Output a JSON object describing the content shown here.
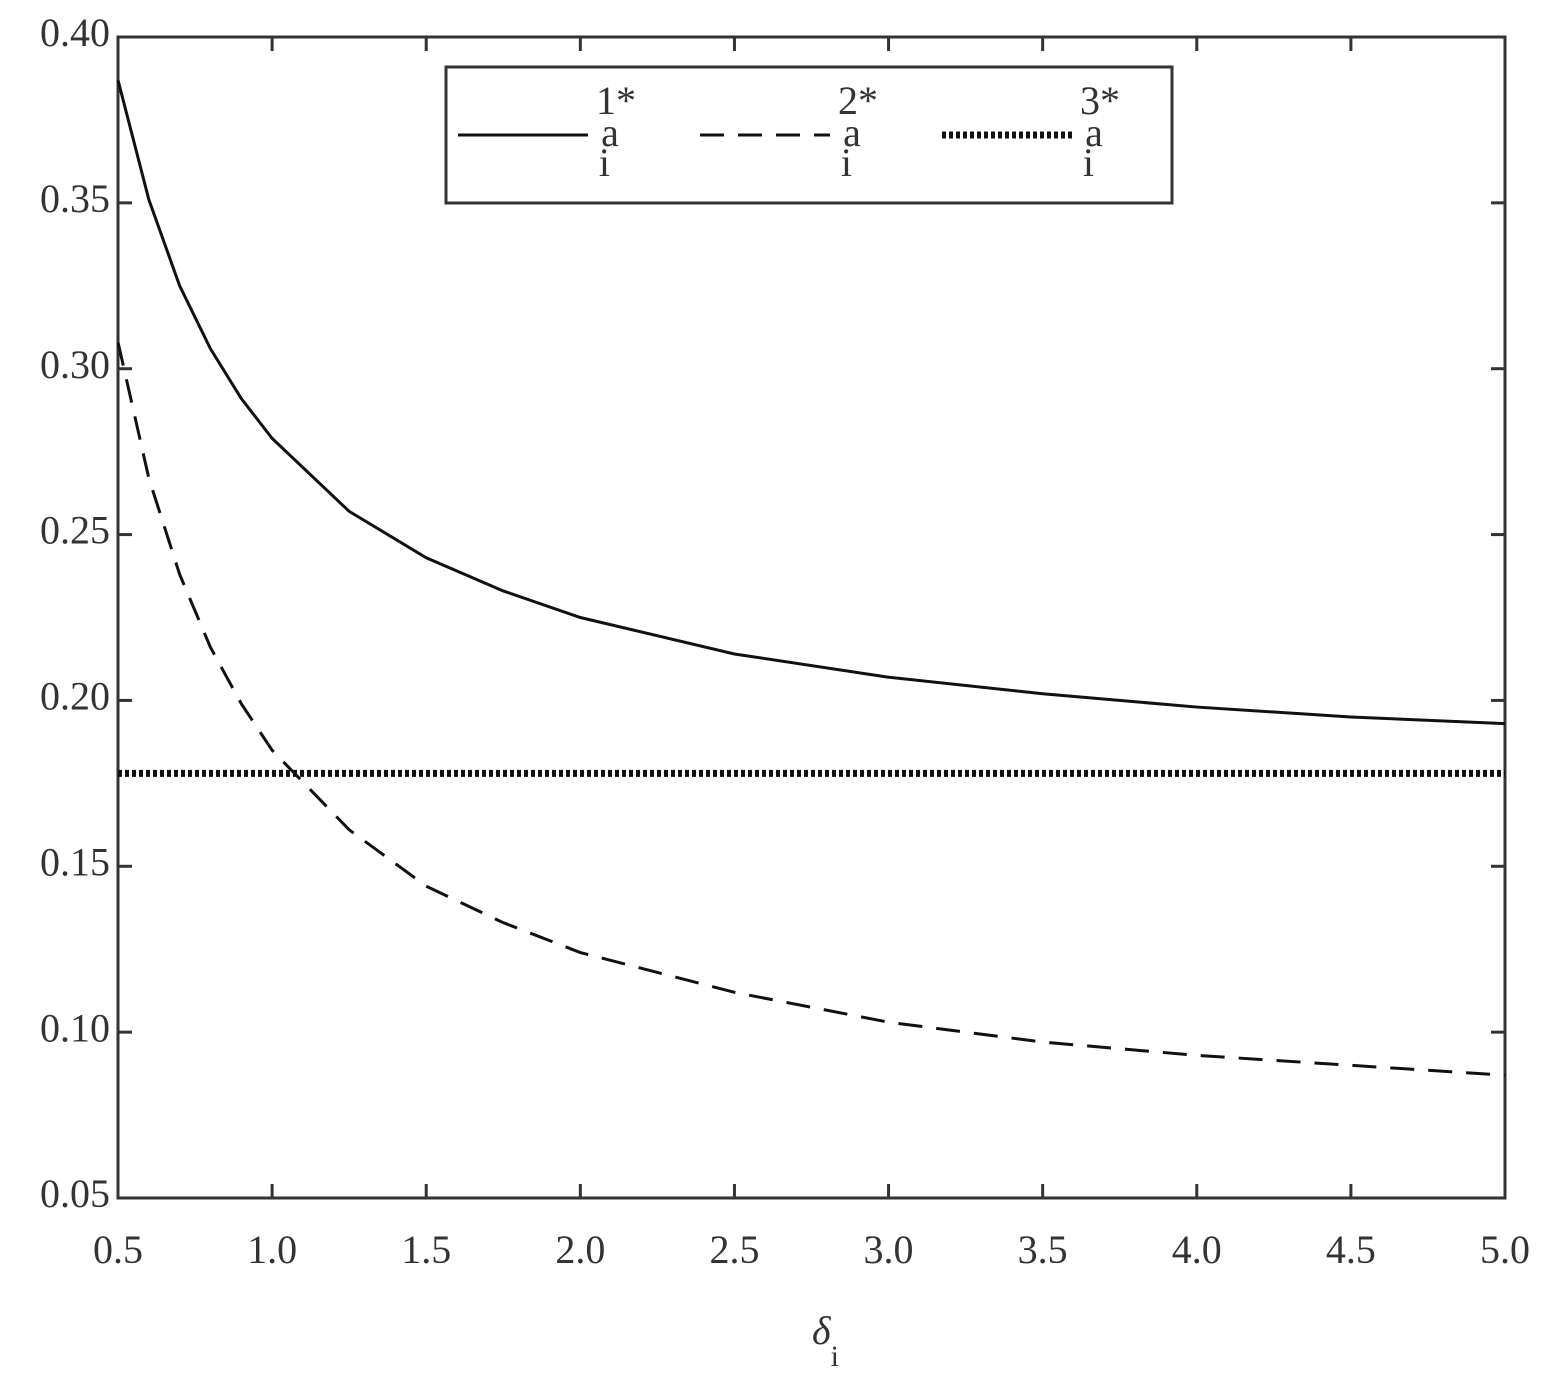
{
  "chart_data": {
    "type": "line",
    "xlabel": "δ",
    "xlabel_sub": "i",
    "x": [
      0.5,
      0.6,
      0.7,
      0.8,
      0.9,
      1.0,
      1.25,
      1.5,
      1.75,
      2.0,
      2.5,
      3.0,
      3.5,
      4.0,
      4.5,
      5.0
    ],
    "series": [
      {
        "name": "a",
        "name_sub": "i",
        "name_sup": "1*",
        "color": "#111111",
        "linestyle": "solid",
        "values": [
          0.387,
          0.351,
          0.325,
          0.306,
          0.291,
          0.279,
          0.257,
          0.243,
          0.233,
          0.225,
          0.214,
          0.207,
          0.202,
          0.198,
          0.195,
          0.193
        ]
      },
      {
        "name": "a",
        "name_sub": "i",
        "name_sup": "2*",
        "color": "#111111",
        "linestyle": "dashed",
        "values": [
          0.308,
          0.267,
          0.238,
          0.216,
          0.199,
          0.185,
          0.161,
          0.144,
          0.133,
          0.124,
          0.112,
          0.103,
          0.097,
          0.093,
          0.09,
          0.087
        ]
      },
      {
        "name": "a",
        "name_sub": "i",
        "name_sup": "3*",
        "color": "#111111",
        "linestyle": "dotted",
        "values": [
          0.178,
          0.178,
          0.178,
          0.178,
          0.178,
          0.178,
          0.178,
          0.178,
          0.178,
          0.178,
          0.178,
          0.178,
          0.178,
          0.178,
          0.178,
          0.178
        ]
      }
    ],
    "xlim": [
      0.5,
      5.0
    ],
    "xticks": [
      0.5,
      {
        "value": 1.0,
        "label": "1.0"
      },
      1.5,
      {
        "value": 2.0,
        "label": "2.0"
      },
      2.5,
      {
        "value": 3.0,
        "label": "3.0"
      },
      3.5,
      {
        "value": 4.0,
        "label": "4.0"
      },
      4.5,
      {
        "value": 5.0,
        "label": "5.0"
      }
    ],
    "ylim": [
      0.05,
      0.4
    ],
    "yticks": [
      {
        "value": 0.05,
        "label": "0.05"
      },
      {
        "value": 0.1,
        "label": "0.10"
      },
      0.15,
      {
        "value": 0.2,
        "label": "0.20"
      },
      0.25,
      {
        "value": 0.3,
        "label": "0.30"
      },
      0.35,
      {
        "value": 0.4,
        "label": "0.40"
      }
    ],
    "grid": false,
    "legend": "top"
  }
}
